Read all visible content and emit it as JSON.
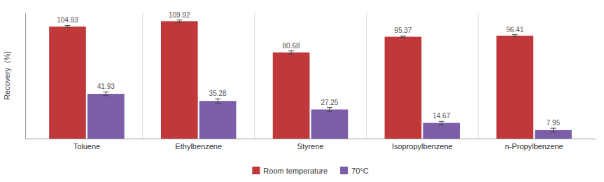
{
  "chart_data": {
    "type": "bar",
    "categories": [
      "Toluene",
      "Ethylbenzene",
      "Styrene",
      "Isopropylbenzene",
      "n-Propylbenzene"
    ],
    "series": [
      {
        "name": "Room temperature",
        "color": "#C0383A",
        "values": [
          104.93,
          109.92,
          80.68,
          95.37,
          96.41
        ],
        "errors": [
          1.0,
          1.2,
          1.5,
          0.8,
          0.9
        ]
      },
      {
        "name": "70°C",
        "color": "#7B5EA7",
        "values": [
          41.93,
          35.28,
          27.25,
          14.67,
          7.95
        ],
        "errors": [
          1.8,
          2.0,
          1.8,
          1.5,
          1.8
        ]
      }
    ],
    "ylabel": "Recovery  (%)",
    "ylim": [
      0,
      118
    ],
    "tick_labels": "x",
    "data_labels": true,
    "grid": false,
    "legend": "bottom"
  }
}
